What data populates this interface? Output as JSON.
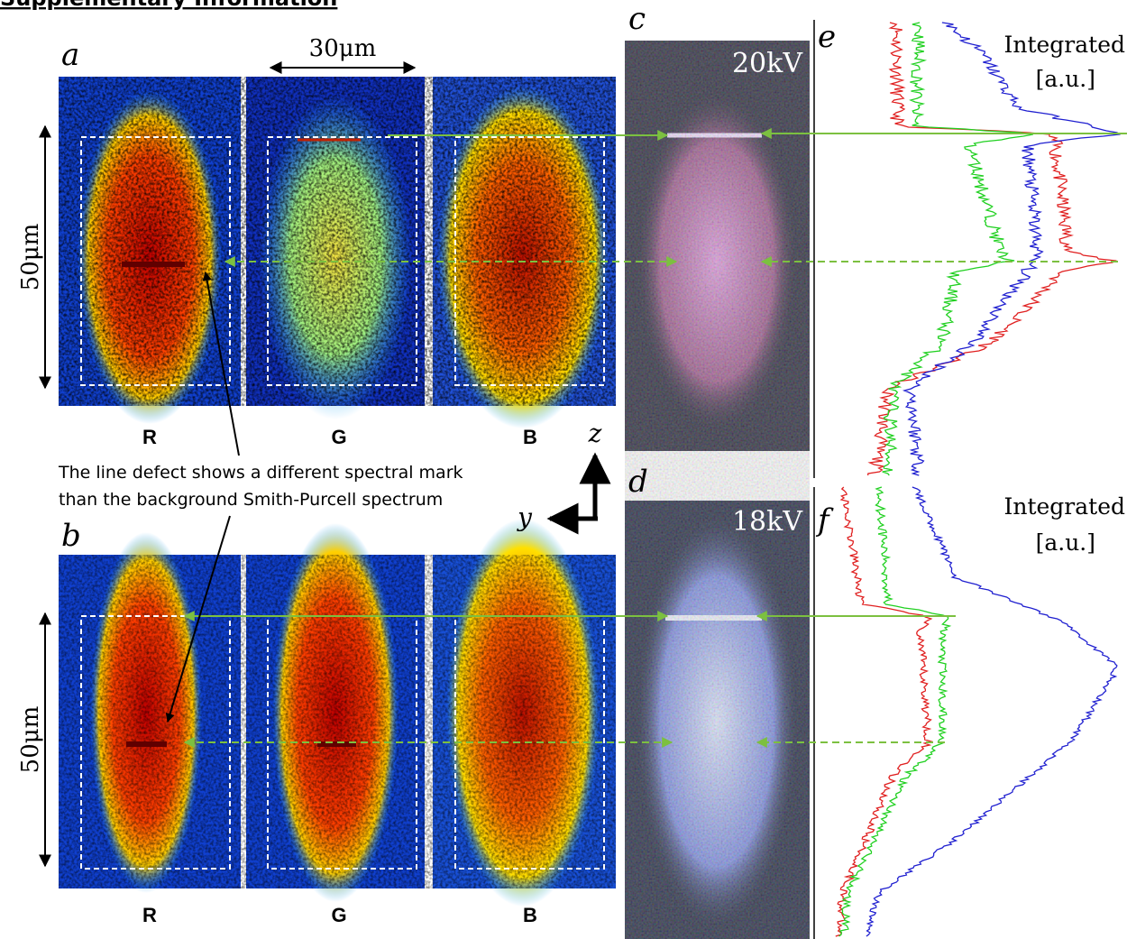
{
  "header": {
    "title": "Supplementary Information"
  },
  "panel_a": {
    "label": "a",
    "scale_x": "30μm",
    "scale_z": "50μm",
    "channels": [
      "R",
      "G",
      "B"
    ]
  },
  "panel_b": {
    "label": "b",
    "scale_z": "50μm",
    "channels": [
      "R",
      "G",
      "B"
    ]
  },
  "annotation": [
    "The line defect shows a different spectral mark",
    "than the background Smith-Purcell spectrum"
  ],
  "axes": {
    "z": "z",
    "y": "y"
  },
  "panel_c": {
    "label": "c",
    "voltage": "20kV"
  },
  "panel_d": {
    "label": "d",
    "voltage": "18kV"
  },
  "panel_e": {
    "label": "e",
    "legend": [
      "Integrated",
      "[a.u.]"
    ]
  },
  "panel_f": {
    "label": "f",
    "legend": [
      "Integrated",
      "[a.u.]"
    ]
  }
}
